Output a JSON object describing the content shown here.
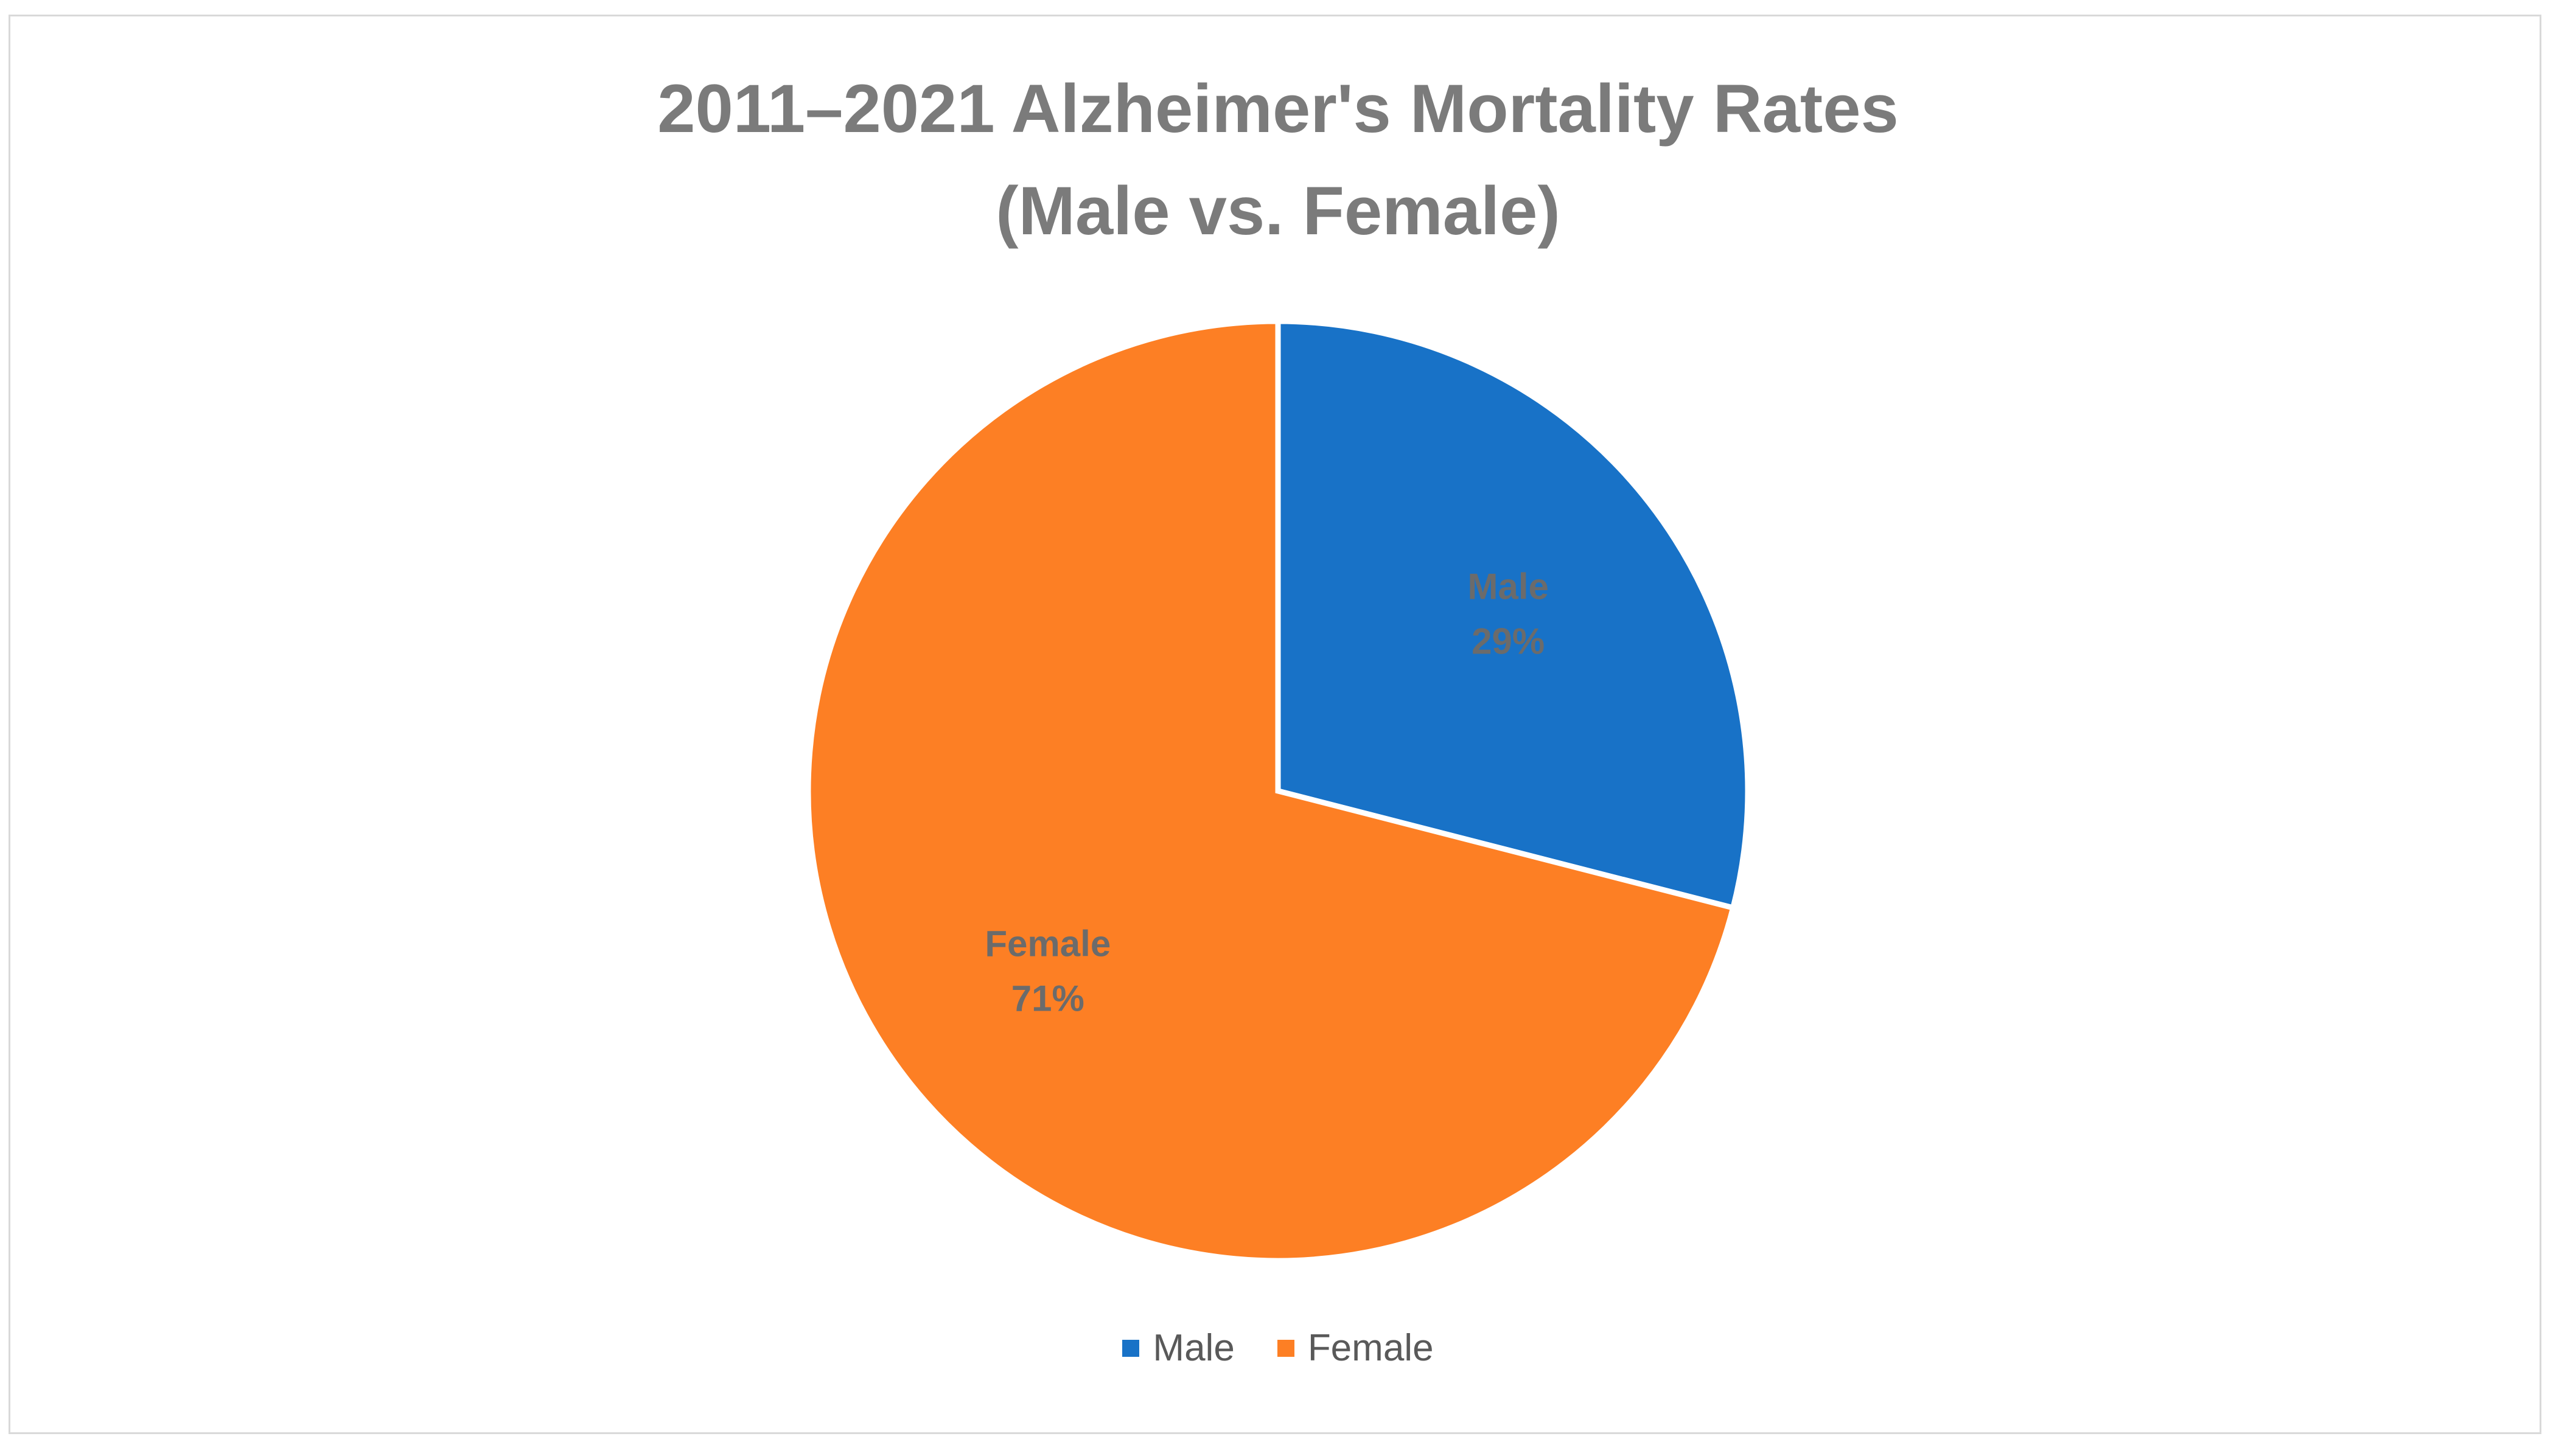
{
  "chart_data": {
    "type": "pie",
    "title": [
      "2011–2021 Alzheimer's Mortality Rates",
      "(Male vs. Female)"
    ],
    "slices": [
      {
        "label": "Male",
        "value": 29,
        "display": "29%",
        "color": "#1872c7",
        "label_color": "#6b6b6b"
      },
      {
        "label": "Female",
        "value": 71,
        "display": "71%",
        "color": "#fd7f24",
        "label_color": "#6b6b6b"
      }
    ],
    "legend": {
      "placement": "bottom",
      "items": [
        {
          "label": "Male",
          "color": "#1872c7"
        },
        {
          "label": "Female",
          "color": "#fd7f24"
        }
      ]
    },
    "start_angle_deg": 0,
    "direction": "clockwise"
  }
}
